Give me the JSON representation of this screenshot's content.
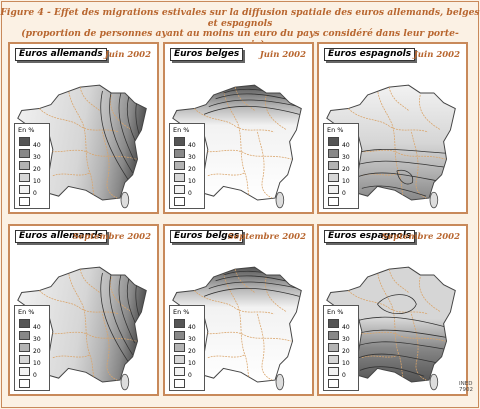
{
  "figure": {
    "title_line1": "Figure 4 - Effet des migrations estivales sur la diffusion spatiale des euros allemands, belges et espagnols",
    "title_line2": "(proportion de personnes ayant au moins un euro du pays considéré dans leur porte-monnaie)",
    "credit_line1": "INED",
    "credit_line2": "7902"
  },
  "legend": {
    "title": "En %",
    "ticks": [
      "40",
      "30",
      "20",
      "10",
      "0"
    ],
    "shades": [
      "#555555",
      "#888888",
      "#b3b3b3",
      "#d6d6d6",
      "#f2f2f2",
      "#ffffff"
    ]
  },
  "colors": {
    "accent": "#b8662f",
    "border": "#c8895a",
    "background": "#fbf1e4",
    "boundaries": "#d9a46a"
  },
  "panels": [
    {
      "label": "Euros allemands",
      "date": "Juin 2002",
      "gradient": "east-high"
    },
    {
      "label": "Euros belges",
      "date": "Juin 2002",
      "gradient": "north-high"
    },
    {
      "label": "Euros espagnols",
      "date": "Juin 2002",
      "gradient": "south-high"
    },
    {
      "label": "Euros allemands",
      "date": "Septembre 2002",
      "gradient": "east-high"
    },
    {
      "label": "Euros belges",
      "date": "Septembre 2002",
      "gradient": "north-high"
    },
    {
      "label": "Euros espagnols",
      "date": "Septembre 2002",
      "gradient": "south-high-strong"
    }
  ]
}
